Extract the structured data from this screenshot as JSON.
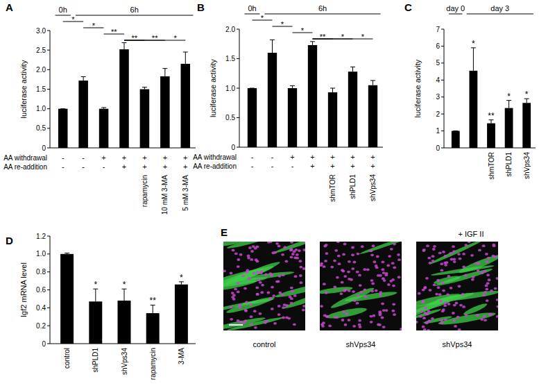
{
  "chart_data": [
    {
      "type": "bar",
      "title": "A",
      "y_label": "luciferase activity",
      "categories": [
        null,
        null,
        null,
        null,
        "rapamycin",
        "10 mM 3-MA",
        "5 mM 3-MA"
      ],
      "values": [
        1.0,
        1.72,
        1.0,
        2.52,
        1.5,
        1.83,
        2.15
      ],
      "errors": [
        0,
        0.1,
        0.03,
        0.17,
        0.05,
        0.2,
        0.3
      ],
      "color": "#000000",
      "ylim": [
        0,
        3
      ],
      "yticks": [
        0,
        0.5,
        {
          "value": 1,
          "label": "1.0"
        },
        1.5,
        {
          "value": 2,
          "label": "2.0"
        },
        2.5,
        {
          "value": 3,
          "label": "3.0"
        }
      ],
      "conditions": [
        {
          "label": "AA withdrawal",
          "values": [
            "-",
            "-",
            "+",
            "+",
            "+",
            "+",
            "+"
          ]
        },
        {
          "label": "AA re-addition",
          "values": [
            "-",
            "-",
            "-",
            "+",
            "+",
            "+",
            "+"
          ]
        }
      ],
      "time_groups": [
        {
          "label": "0h",
          "from": 0,
          "to": 0
        },
        {
          "label": "6h",
          "from": 1,
          "to": 6
        }
      ],
      "significance": [
        {
          "label": "*",
          "from": 0,
          "to": 1
        },
        {
          "label": "*",
          "from": 1,
          "to": 2
        },
        {
          "label": "**",
          "from": 2,
          "to": 3
        },
        {
          "label": "**",
          "from": 3,
          "to": 4
        },
        {
          "label": "**",
          "from": 3,
          "to": 5
        },
        {
          "label": "*",
          "from": 3,
          "to": 6
        }
      ]
    },
    {
      "type": "bar",
      "title": "B",
      "y_label": "luciferase activity",
      "categories": [
        null,
        null,
        null,
        null,
        "shmTOR",
        "shPLD1",
        "shVps34"
      ],
      "values": [
        1.0,
        1.6,
        1.0,
        1.73,
        0.93,
        1.28,
        1.05
      ],
      "errors": [
        0,
        0.22,
        0.04,
        0.06,
        0.07,
        0.08,
        0.08
      ],
      "color": "#000000",
      "ylim": [
        0,
        2
      ],
      "yticks": [
        0,
        0.5,
        {
          "value": 1,
          "label": "1.0"
        },
        1.5,
        {
          "value": 2,
          "label": "2.0"
        }
      ],
      "conditions": [
        {
          "label": "AA withdrawal",
          "values": [
            "-",
            "-",
            "+",
            "+",
            "+",
            "+",
            "+"
          ]
        },
        {
          "label": "AA re-addition",
          "values": [
            "-",
            "-",
            "-",
            "+",
            "+",
            "+",
            "+"
          ]
        }
      ],
      "time_groups": [
        {
          "label": "0h",
          "from": 0,
          "to": 0
        },
        {
          "label": "6h",
          "from": 1,
          "to": 6
        }
      ],
      "significance": [
        {
          "label": "*",
          "from": 0,
          "to": 1
        },
        {
          "label": "*",
          "from": 1,
          "to": 2
        },
        {
          "label": "*",
          "from": 2,
          "to": 3
        },
        {
          "label": "**",
          "from": 3,
          "to": 4
        },
        {
          "label": "*",
          "from": 3,
          "to": 5
        },
        {
          "label": "*",
          "from": 3,
          "to": 6
        }
      ]
    },
    {
      "type": "bar",
      "title": "C",
      "y_label": "luciferase activity",
      "categories": [
        null,
        null,
        "shmTOR",
        "shPLD1",
        "shVps34"
      ],
      "values": [
        1.0,
        4.55,
        1.45,
        2.35,
        2.65
      ],
      "errors": [
        0,
        1.35,
        0.2,
        0.45,
        0.25
      ],
      "color": "#000000",
      "ylim": [
        0,
        7
      ],
      "yticks": [
        0,
        1,
        2,
        3,
        4,
        5,
        6,
        7
      ],
      "time_groups": [
        {
          "label": "day 0",
          "from": 0,
          "to": 0
        },
        {
          "label": "day 3",
          "from": 1,
          "to": 4
        }
      ],
      "significance": [
        {
          "label": "*",
          "from": 1,
          "to": 1
        },
        {
          "label": "**",
          "from": 2,
          "to": 2
        },
        {
          "label": "*",
          "from": 3,
          "to": 3
        },
        {
          "label": "*",
          "from": 4,
          "to": 4
        }
      ]
    },
    {
      "type": "bar",
      "title": "D",
      "y_label": "Igf2 mRNA level",
      "categories": [
        "control",
        "shPLD1",
        "shVps34",
        "rapamycin",
        "3-MA"
      ],
      "values": [
        1.0,
        0.47,
        0.48,
        0.34,
        0.66
      ],
      "errors": [
        0.01,
        0.14,
        0.13,
        0.09,
        0.03
      ],
      "color": "#000000",
      "ylim": [
        0,
        1.2
      ],
      "yticks": [
        0,
        0.2,
        0.4,
        0.6,
        0.8,
        {
          "value": 1,
          "label": "1.0"
        },
        1.2
      ],
      "significance": [
        {
          "label": "*",
          "from": 1,
          "to": 1
        },
        {
          "label": "*",
          "from": 2,
          "to": 2
        },
        {
          "label": "**",
          "from": 3,
          "to": 3
        },
        {
          "label": "*",
          "from": 4,
          "to": 4
        }
      ]
    }
  ],
  "panel_e": {
    "title": "E",
    "images": [
      {
        "label": "control"
      },
      {
        "label": "shVps34"
      },
      {
        "label": "shVps34",
        "treatment": "+ IGF II"
      }
    ]
  }
}
